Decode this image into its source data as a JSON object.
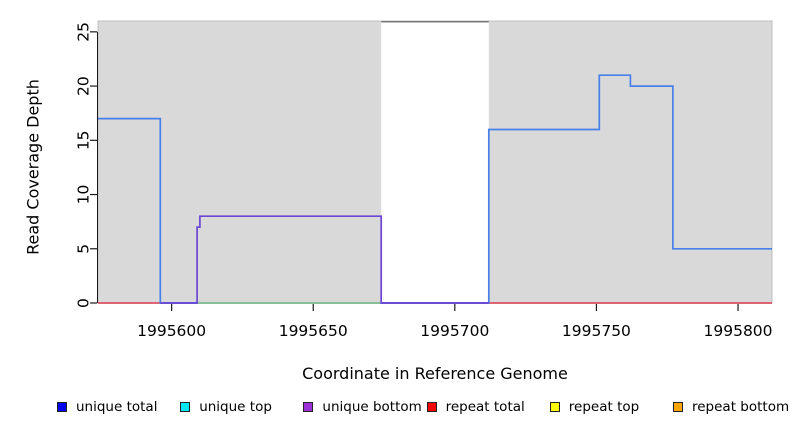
{
  "chart_data": {
    "type": "line",
    "title": "",
    "xlabel": "Coordinate in Reference Genome",
    "ylabel": "Read Coverage Depth",
    "xlim": [
      1995574,
      1995812
    ],
    "ylim": [
      0,
      26
    ],
    "x_ticks": [
      1995600,
      1995650,
      1995700,
      1995750,
      1995800
    ],
    "y_ticks": [
      0,
      5,
      10,
      15,
      20,
      25
    ],
    "grid": false,
    "panel_bg": "#d9d9d9",
    "panel_border": "#bfbfbf",
    "axis_color": "#1a1a1a",
    "highlight_region": {
      "x0": 1995674,
      "x1": 1995712,
      "fill": "#ffffff",
      "top_border": "#7a7a7a"
    },
    "series": [
      {
        "name": "repeat-baseline",
        "color": "#dc5062",
        "points": [
          [
            1995574,
            0
          ],
          [
            1995812,
            0
          ]
        ]
      },
      {
        "name": "unique-total",
        "color": "#4880ea",
        "points": [
          [
            1995574,
            17
          ],
          [
            1995596,
            17
          ],
          [
            1995596,
            0
          ],
          [
            1995712,
            0
          ],
          [
            1995712,
            16
          ],
          [
            1995751,
            16
          ],
          [
            1995751,
            21
          ],
          [
            1995762,
            21
          ],
          [
            1995762,
            20
          ],
          [
            1995777,
            20
          ],
          [
            1995777,
            5
          ],
          [
            1995812,
            5
          ]
        ]
      },
      {
        "name": "green-baseline",
        "color": "#8cc88c",
        "points": [
          [
            1995609,
            0
          ],
          [
            1995674,
            0
          ]
        ]
      },
      {
        "name": "unique-bottom",
        "color": "#6a46d6",
        "points": [
          [
            1995596,
            0
          ],
          [
            1995609,
            0
          ],
          [
            1995609,
            7
          ],
          [
            1995610,
            7
          ],
          [
            1995610,
            8
          ],
          [
            1995674,
            8
          ],
          [
            1995674,
            0
          ],
          [
            1995712,
            0
          ]
        ]
      }
    ],
    "legend": {
      "position": "bottom",
      "items": [
        {
          "label": "unique total",
          "color": "#0000f0"
        },
        {
          "label": "unique top",
          "color": "#00e8f5"
        },
        {
          "label": "unique bottom",
          "color": "#9b30d9"
        },
        {
          "label": "repeat total",
          "color": "#f00000"
        },
        {
          "label": "repeat top",
          "color": "#ffff00"
        },
        {
          "label": "repeat bottom",
          "color": "#ffa500"
        }
      ]
    }
  }
}
